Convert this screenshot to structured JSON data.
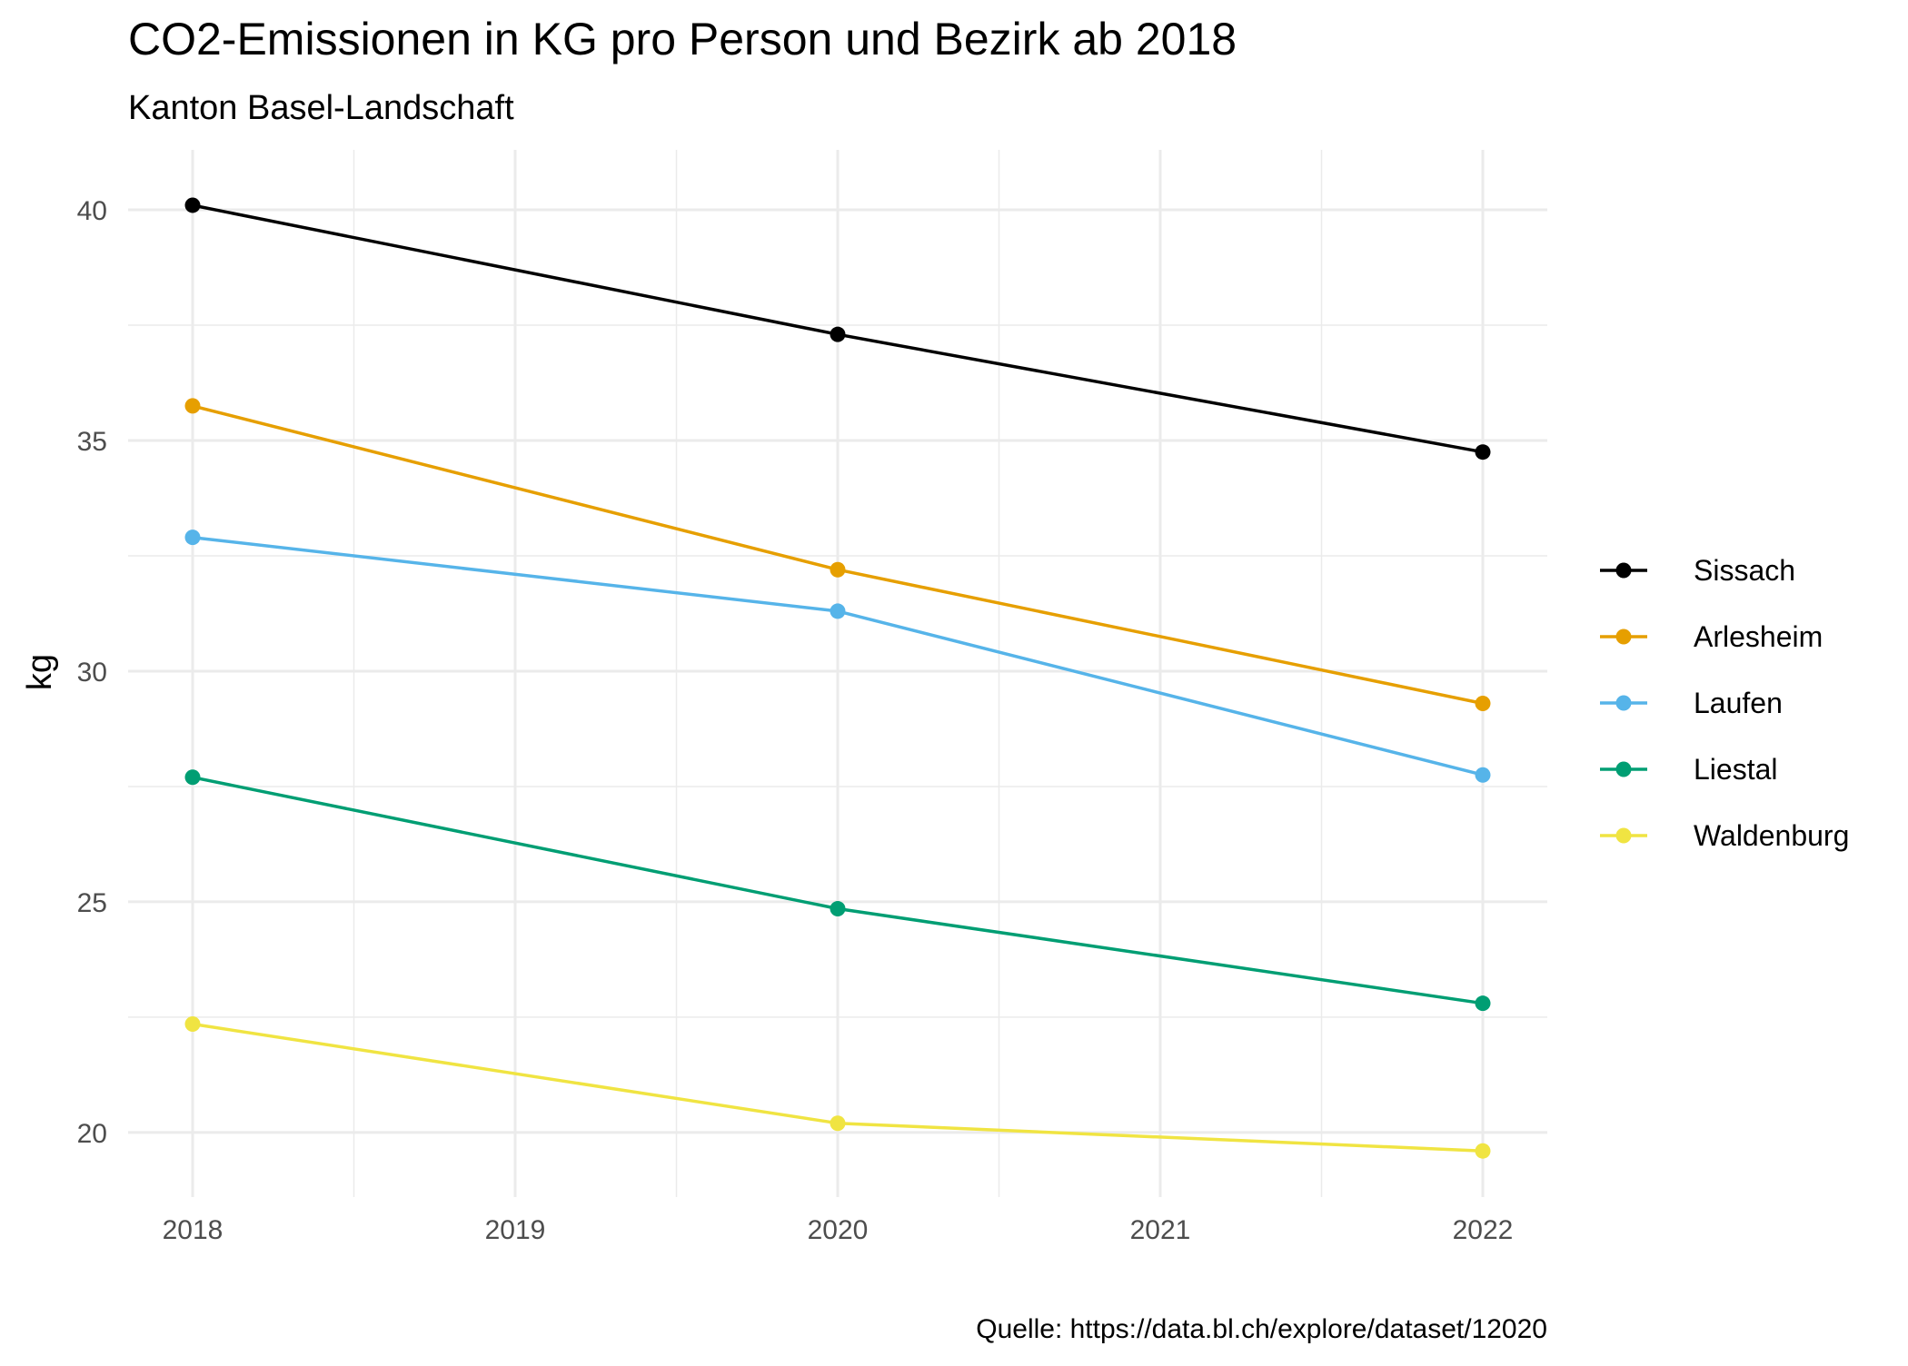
{
  "chart_data": {
    "type": "line",
    "title": "CO2-Emissionen in KG pro Person und Bezirk ab 2018",
    "subtitle": "Kanton Basel-Landschaft",
    "xlabel": "",
    "ylabel": "kg",
    "caption": "Quelle: https://data.bl.ch/explore/dataset/12020",
    "x": [
      2018,
      2020,
      2022
    ],
    "x_ticks": [
      2018,
      2019,
      2020,
      2021,
      2022
    ],
    "y_ticks": [
      20,
      25,
      30,
      35,
      40
    ],
    "xlim": [
      2017.8,
      2022.2
    ],
    "ylim": [
      18.6,
      41.3
    ],
    "grid": true,
    "legend_position": "right",
    "series": [
      {
        "name": "Sissach",
        "color": "#000000",
        "values": [
          40.1,
          37.3,
          34.75
        ]
      },
      {
        "name": "Arlesheim",
        "color": "#E69F00",
        "values": [
          35.75,
          32.2,
          29.3
        ]
      },
      {
        "name": "Laufen",
        "color": "#56B4E9",
        "values": [
          32.9,
          31.3,
          27.75
        ]
      },
      {
        "name": "Liestal",
        "color": "#009E73",
        "values": [
          27.7,
          24.85,
          22.8
        ]
      },
      {
        "name": "Waldenburg",
        "color": "#F0E442",
        "values": [
          22.35,
          20.2,
          19.6
        ]
      }
    ]
  }
}
